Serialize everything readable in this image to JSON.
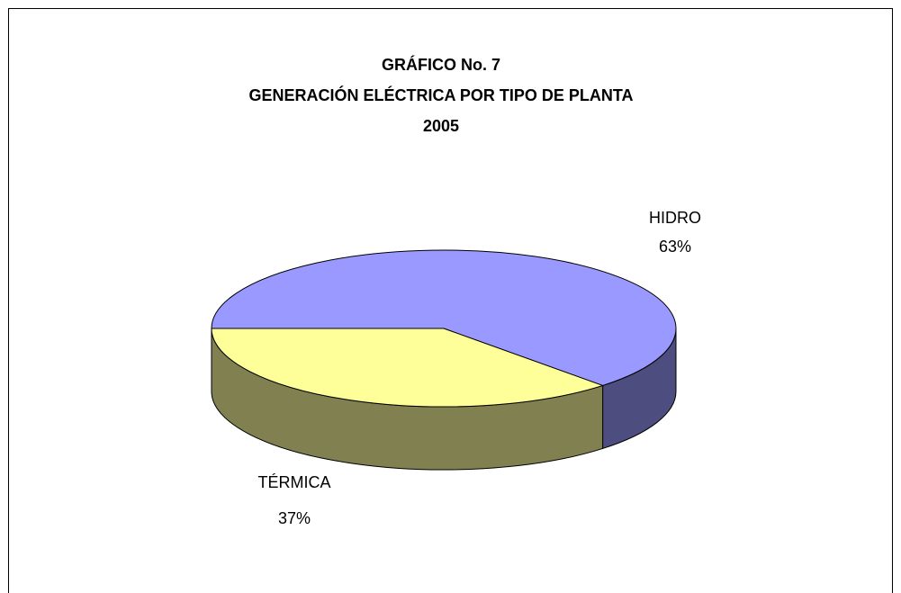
{
  "chart_data": {
    "type": "pie3d",
    "title": [
      "GRÁFICO  No. 7",
      "GENERACIÓN ELÉCTRICA POR TIPO DE PLANTA",
      "2005"
    ],
    "categories": [
      "HIDRO",
      "TÉRMICA"
    ],
    "values": [
      63,
      37
    ],
    "value_labels": [
      "63%",
      "37%"
    ],
    "colors": [
      "#9999ff",
      "#ffff99"
    ],
    "side_colors": [
      "#4d4d80",
      "#808050"
    ]
  }
}
